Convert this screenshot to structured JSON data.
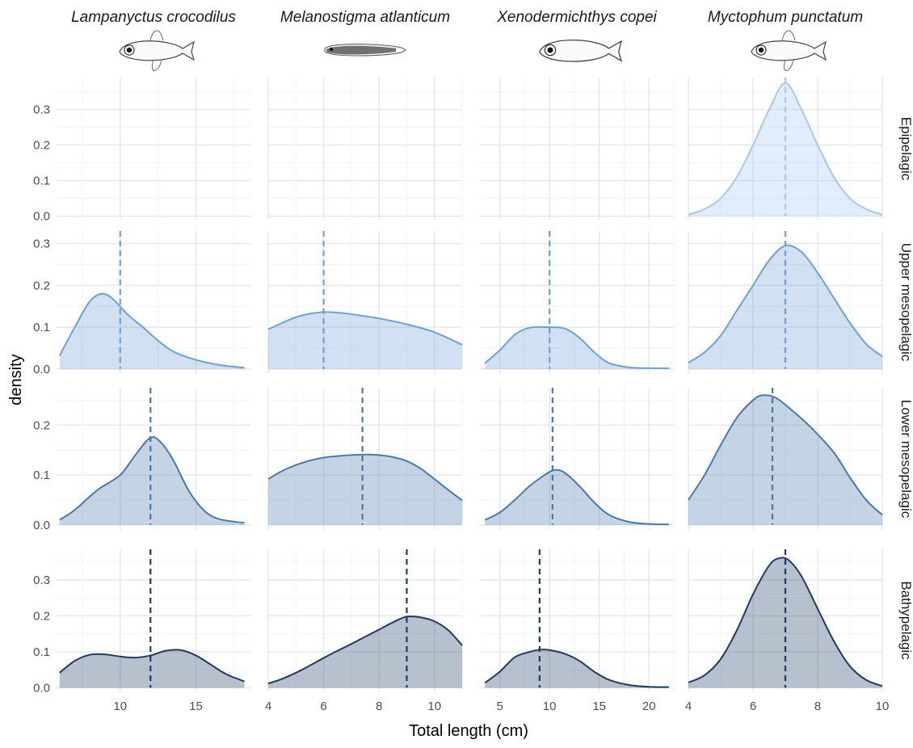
{
  "chart_data": {
    "type": "area",
    "xlabel": "Total length (cm)",
    "ylabel": "density",
    "columns": [
      {
        "species": "Lampanyctus crocodilus",
        "icon": "lanternfish-illustration",
        "xlim": [
          5.8,
          18.6
        ],
        "xticks": [
          10,
          15
        ]
      },
      {
        "species": "Melanostigma atlanticum",
        "icon": "eelpout-illustration",
        "xlim": [
          4,
          11
        ],
        "xticks": [
          4,
          6,
          8,
          10
        ]
      },
      {
        "species": "Xenodermichthys copei",
        "icon": "smoothhead-illustration",
        "xlim": [
          3,
          22.5
        ],
        "xticks": [
          5,
          10,
          15,
          20
        ]
      },
      {
        "species": "Myctophum punctatum",
        "icon": "lanternfish-illustration",
        "xlim": [
          4,
          10
        ],
        "xticks": [
          4,
          6,
          8,
          10
        ]
      }
    ],
    "rows": [
      {
        "zone": "Epipelagic",
        "color": "#a6c8f2",
        "ylim": [
          -0.01,
          0.39
        ],
        "yticks": [
          0.0,
          0.1,
          0.2,
          0.3
        ]
      },
      {
        "zone": "Upper mesopelagic",
        "color": "#6f9fd8",
        "ylim": [
          -0.01,
          0.33
        ],
        "yticks": [
          0.0,
          0.1,
          0.2,
          0.3
        ]
      },
      {
        "zone": "Lower mesopelagic",
        "color": "#4a78ad",
        "ylim": [
          -0.01,
          0.275
        ],
        "yticks": [
          0.0,
          0.1,
          0.2
        ]
      },
      {
        "zone": "Bathypelagic",
        "color": "#1f3b63",
        "ylim": [
          -0.01,
          0.385
        ],
        "yticks": [
          0.0,
          0.1,
          0.2,
          0.3
        ]
      }
    ],
    "panels": [
      {
        "row": 0,
        "col": 0,
        "mean": null,
        "curve": null
      },
      {
        "row": 0,
        "col": 1,
        "mean": null,
        "curve": null
      },
      {
        "row": 0,
        "col": 2,
        "mean": null,
        "curve": null
      },
      {
        "row": 0,
        "col": 3,
        "mean": 7.0,
        "curve": [
          [
            4,
            0.004
          ],
          [
            4.5,
            0.02
          ],
          [
            5,
            0.05
          ],
          [
            5.5,
            0.11
          ],
          [
            6,
            0.2
          ],
          [
            6.5,
            0.3
          ],
          [
            7,
            0.375
          ],
          [
            7.5,
            0.3
          ],
          [
            8,
            0.2
          ],
          [
            8.5,
            0.11
          ],
          [
            9,
            0.05
          ],
          [
            9.5,
            0.02
          ],
          [
            10,
            0.004
          ]
        ]
      },
      {
        "row": 1,
        "col": 0,
        "mean": 10.0,
        "curve": [
          [
            6,
            0.032
          ],
          [
            7,
            0.1
          ],
          [
            8,
            0.162
          ],
          [
            8.8,
            0.18
          ],
          [
            9.5,
            0.168
          ],
          [
            10.5,
            0.13
          ],
          [
            11.5,
            0.1
          ],
          [
            12.5,
            0.068
          ],
          [
            13.5,
            0.042
          ],
          [
            15,
            0.022
          ],
          [
            16.5,
            0.01
          ],
          [
            18.2,
            0.003
          ]
        ]
      },
      {
        "row": 1,
        "col": 1,
        "mean": 6.0,
        "curve": [
          [
            4,
            0.095
          ],
          [
            4.5,
            0.11
          ],
          [
            5,
            0.124
          ],
          [
            5.5,
            0.132
          ],
          [
            6,
            0.136
          ],
          [
            6.5,
            0.135
          ],
          [
            7,
            0.131
          ],
          [
            8,
            0.121
          ],
          [
            9,
            0.107
          ],
          [
            10,
            0.088
          ],
          [
            11,
            0.058
          ]
        ]
      },
      {
        "row": 1,
        "col": 2,
        "mean": 10.0,
        "curve": [
          [
            3.5,
            0.014
          ],
          [
            5,
            0.045
          ],
          [
            6.5,
            0.082
          ],
          [
            8,
            0.099
          ],
          [
            10,
            0.1
          ],
          [
            11.5,
            0.097
          ],
          [
            13,
            0.075
          ],
          [
            14.5,
            0.04
          ],
          [
            16,
            0.014
          ],
          [
            18,
            0.004
          ],
          [
            20,
            0.002
          ],
          [
            22,
            0.002
          ]
        ]
      },
      {
        "row": 1,
        "col": 3,
        "mean": 7.0,
        "curve": [
          [
            4,
            0.015
          ],
          [
            4.5,
            0.04
          ],
          [
            5,
            0.08
          ],
          [
            5.5,
            0.14
          ],
          [
            6,
            0.2
          ],
          [
            6.5,
            0.26
          ],
          [
            7,
            0.295
          ],
          [
            7.5,
            0.28
          ],
          [
            8,
            0.23
          ],
          [
            8.5,
            0.17
          ],
          [
            9,
            0.11
          ],
          [
            9.5,
            0.06
          ],
          [
            10,
            0.03
          ]
        ]
      },
      {
        "row": 2,
        "col": 0,
        "mean": 12.0,
        "curve": [
          [
            6,
            0.01
          ],
          [
            7,
            0.03
          ],
          [
            8.5,
            0.07
          ],
          [
            10,
            0.1
          ],
          [
            11,
            0.14
          ],
          [
            12,
            0.175
          ],
          [
            12.7,
            0.165
          ],
          [
            13.5,
            0.13
          ],
          [
            14.5,
            0.07
          ],
          [
            15.5,
            0.03
          ],
          [
            16.5,
            0.012
          ],
          [
            18.2,
            0.004
          ]
        ]
      },
      {
        "row": 2,
        "col": 1,
        "mean": 7.4,
        "curve": [
          [
            4,
            0.092
          ],
          [
            4.5,
            0.108
          ],
          [
            5,
            0.12
          ],
          [
            5.5,
            0.129
          ],
          [
            6,
            0.135
          ],
          [
            6.5,
            0.138
          ],
          [
            7,
            0.14
          ],
          [
            7.5,
            0.141
          ],
          [
            8,
            0.14
          ],
          [
            8.5,
            0.136
          ],
          [
            9,
            0.128
          ],
          [
            9.5,
            0.113
          ],
          [
            10,
            0.092
          ],
          [
            10.5,
            0.07
          ],
          [
            11,
            0.049
          ]
        ]
      },
      {
        "row": 2,
        "col": 2,
        "mean": 10.3,
        "curve": [
          [
            3.5,
            0.01
          ],
          [
            5,
            0.025
          ],
          [
            6.5,
            0.05
          ],
          [
            8,
            0.078
          ],
          [
            9.5,
            0.1
          ],
          [
            10.5,
            0.11
          ],
          [
            11.5,
            0.105
          ],
          [
            13,
            0.078
          ],
          [
            14.5,
            0.045
          ],
          [
            16,
            0.02
          ],
          [
            18,
            0.006
          ],
          [
            20,
            0.002
          ],
          [
            22,
            0.001
          ]
        ]
      },
      {
        "row": 2,
        "col": 3,
        "mean": 6.6,
        "curve": [
          [
            4,
            0.05
          ],
          [
            4.5,
            0.1
          ],
          [
            5,
            0.16
          ],
          [
            5.5,
            0.215
          ],
          [
            6,
            0.25
          ],
          [
            6.3,
            0.26
          ],
          [
            6.7,
            0.255
          ],
          [
            7.2,
            0.23
          ],
          [
            7.8,
            0.195
          ],
          [
            8.5,
            0.145
          ],
          [
            9,
            0.095
          ],
          [
            9.5,
            0.05
          ],
          [
            10,
            0.02
          ]
        ]
      },
      {
        "row": 3,
        "col": 0,
        "mean": 12.0,
        "curve": [
          [
            6,
            0.042
          ],
          [
            7,
            0.075
          ],
          [
            8,
            0.092
          ],
          [
            9,
            0.093
          ],
          [
            10,
            0.087
          ],
          [
            11,
            0.084
          ],
          [
            12,
            0.09
          ],
          [
            13,
            0.103
          ],
          [
            14,
            0.105
          ],
          [
            15,
            0.09
          ],
          [
            16,
            0.064
          ],
          [
            17,
            0.038
          ],
          [
            18.2,
            0.018
          ]
        ]
      },
      {
        "row": 3,
        "col": 1,
        "mean": 9.0,
        "curve": [
          [
            4,
            0.012
          ],
          [
            4.5,
            0.025
          ],
          [
            5,
            0.042
          ],
          [
            5.5,
            0.062
          ],
          [
            6,
            0.083
          ],
          [
            6.5,
            0.103
          ],
          [
            7,
            0.122
          ],
          [
            7.5,
            0.142
          ],
          [
            8,
            0.162
          ],
          [
            8.5,
            0.182
          ],
          [
            9,
            0.198
          ],
          [
            9.5,
            0.196
          ],
          [
            10,
            0.185
          ],
          [
            10.5,
            0.16
          ],
          [
            11,
            0.118
          ]
        ]
      },
      {
        "row": 3,
        "col": 2,
        "mean": 9.0,
        "curve": [
          [
            3.5,
            0.014
          ],
          [
            5,
            0.045
          ],
          [
            6.5,
            0.085
          ],
          [
            8,
            0.1
          ],
          [
            9,
            0.106
          ],
          [
            10,
            0.105
          ],
          [
            11.5,
            0.095
          ],
          [
            13,
            0.075
          ],
          [
            14.5,
            0.045
          ],
          [
            16,
            0.022
          ],
          [
            18,
            0.008
          ],
          [
            20,
            0.003
          ],
          [
            22,
            0.002
          ]
        ]
      },
      {
        "row": 3,
        "col": 3,
        "mean": 7.0,
        "curve": [
          [
            4,
            0.015
          ],
          [
            4.5,
            0.035
          ],
          [
            5,
            0.08
          ],
          [
            5.5,
            0.16
          ],
          [
            6,
            0.26
          ],
          [
            6.5,
            0.34
          ],
          [
            6.8,
            0.36
          ],
          [
            7.1,
            0.355
          ],
          [
            7.5,
            0.31
          ],
          [
            8,
            0.22
          ],
          [
            8.5,
            0.13
          ],
          [
            9,
            0.06
          ],
          [
            9.5,
            0.022
          ],
          [
            10,
            0.005
          ]
        ]
      }
    ]
  }
}
